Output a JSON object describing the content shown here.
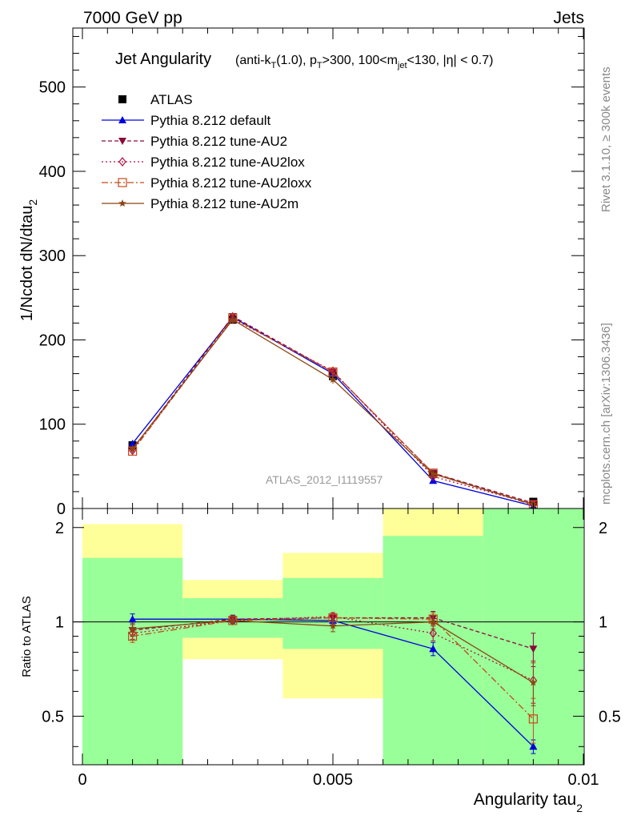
{
  "header": {
    "energy_label": "7000 GeV pp",
    "process_label": "Jets",
    "rivet_label": "Rivet 3.1.10, ≥ 300k events",
    "mcplots_label": "mcplots.cern.ch [arXiv:1306.3436]",
    "analysis_id": "ATLAS_2012_I1119557"
  },
  "chart_data": [
    {
      "type": "line",
      "panel": "main",
      "title": "Jet Angularity",
      "subtitle": "(anti-kT(1.0), pT>300, 100<mjet<130, |η| < 0.7)",
      "ylabel": "1/Ncdot dN/dtau_2",
      "xlabel": "Angularity tau_2",
      "xlim": [
        0,
        0.01
      ],
      "ylim": [
        0,
        570
      ],
      "y_ticks": [
        0,
        100,
        200,
        300,
        400,
        500
      ],
      "y_tick_labels": [
        "0",
        "100",
        "200",
        "300",
        "400",
        "500"
      ],
      "x": [
        0.001,
        0.003,
        0.005,
        0.007,
        0.009
      ],
      "series": [
        {
          "name": "ATLAS",
          "color": "#000000",
          "marker": "square",
          "values": [
            75,
            224,
            157,
            41,
            8
          ],
          "errors": [
            2,
            4,
            3,
            1,
            0.5
          ]
        },
        {
          "name": "Pythia 8.212 default",
          "color": "#0000dd",
          "marker": "triangle-up",
          "values": [
            77,
            227,
            160,
            33,
            3
          ],
          "errors": [
            2,
            5,
            4,
            1.5,
            0.5
          ]
        },
        {
          "name": "Pythia 8.212 tune-AU2",
          "color": "#8b0a3c",
          "marker": "triangle-down",
          "values": [
            70,
            228,
            162,
            42,
            6.5
          ],
          "errors": [
            2,
            5,
            4,
            1.5,
            0.5
          ]
        },
        {
          "name": "Pythia 8.212 tune-AU2lox",
          "color": "#b01040",
          "marker": "diamond",
          "values": [
            69,
            225,
            163,
            38,
            5
          ],
          "errors": [
            2,
            5,
            4,
            1.5,
            0.5
          ]
        },
        {
          "name": "Pythia 8.212 tune-AU2loxx",
          "color": "#c44a1a",
          "marker": "square-open",
          "values": [
            68,
            226,
            162,
            42,
            4
          ],
          "errors": [
            2,
            5,
            4,
            1.5,
            0.5
          ]
        },
        {
          "name": "Pythia 8.212 tune-AU2m",
          "color": "#8b4513",
          "marker": "star",
          "values": [
            71,
            224,
            153,
            41,
            5
          ],
          "errors": [
            2,
            5,
            5,
            1.5,
            0.5
          ]
        }
      ]
    },
    {
      "type": "line",
      "panel": "ratio",
      "ylabel": "Ratio to ATLAS",
      "xlabel": "Angularity tau_2",
      "xlim": [
        0,
        0.01
      ],
      "ylim": [
        0.35,
        2.3
      ],
      "y_scale": "log",
      "y_ticks": [
        0.5,
        1,
        2
      ],
      "y_tick_labels": [
        "0.5",
        "1",
        "2"
      ],
      "x_ticks": [
        0,
        0.005,
        0.01
      ],
      "x_tick_labels": [
        "0",
        "0.005",
        "0.01"
      ],
      "x": [
        0.001,
        0.003,
        0.005,
        0.007,
        0.009
      ],
      "bands": [
        {
          "x_lo": 0.0,
          "x_hi": 0.002,
          "yellow": [
            0.35,
            2.05
          ],
          "green": [
            0.35,
            1.6
          ]
        },
        {
          "x_lo": 0.002,
          "x_hi": 0.004,
          "yellow": [
            0.76,
            1.36
          ],
          "green": [
            0.89,
            1.19
          ]
        },
        {
          "x_lo": 0.004,
          "x_hi": 0.006,
          "yellow": [
            0.57,
            1.66
          ],
          "green": [
            0.82,
            1.38
          ]
        },
        {
          "x_lo": 0.006,
          "x_hi": 0.008,
          "yellow": [
            0.35,
            2.3
          ],
          "green": [
            0.35,
            1.88
          ]
        },
        {
          "x_lo": 0.008,
          "x_hi": 0.01,
          "yellow": [
            0.35,
            2.3
          ],
          "green": [
            0.35,
            2.3
          ]
        }
      ],
      "series": [
        {
          "name": "Pythia 8.212 default",
          "values": [
            1.02,
            1.02,
            1.01,
            0.82,
            0.4
          ],
          "errors": [
            0.04,
            0.03,
            0.03,
            0.04,
            0.02
          ]
        },
        {
          "name": "Pythia 8.212 tune-AU2",
          "values": [
            0.94,
            1.02,
            1.03,
            1.03,
            0.82
          ],
          "errors": [
            0.04,
            0.03,
            0.03,
            0.05,
            0.1
          ]
        },
        {
          "name": "Pythia 8.212 tune-AU2lox",
          "values": [
            0.92,
            1.01,
            1.04,
            0.92,
            0.65
          ],
          "errors": [
            0.04,
            0.03,
            0.03,
            0.05,
            0.1
          ]
        },
        {
          "name": "Pythia 8.212 tune-AU2loxx",
          "values": [
            0.9,
            1.01,
            1.03,
            1.02,
            0.49
          ],
          "errors": [
            0.04,
            0.03,
            0.03,
            0.05,
            0.08
          ]
        },
        {
          "name": "Pythia 8.212 tune-AU2m",
          "values": [
            0.95,
            1.01,
            0.97,
            1.0,
            0.64
          ],
          "errors": [
            0.04,
            0.03,
            0.04,
            0.05,
            0.1
          ]
        }
      ]
    }
  ]
}
